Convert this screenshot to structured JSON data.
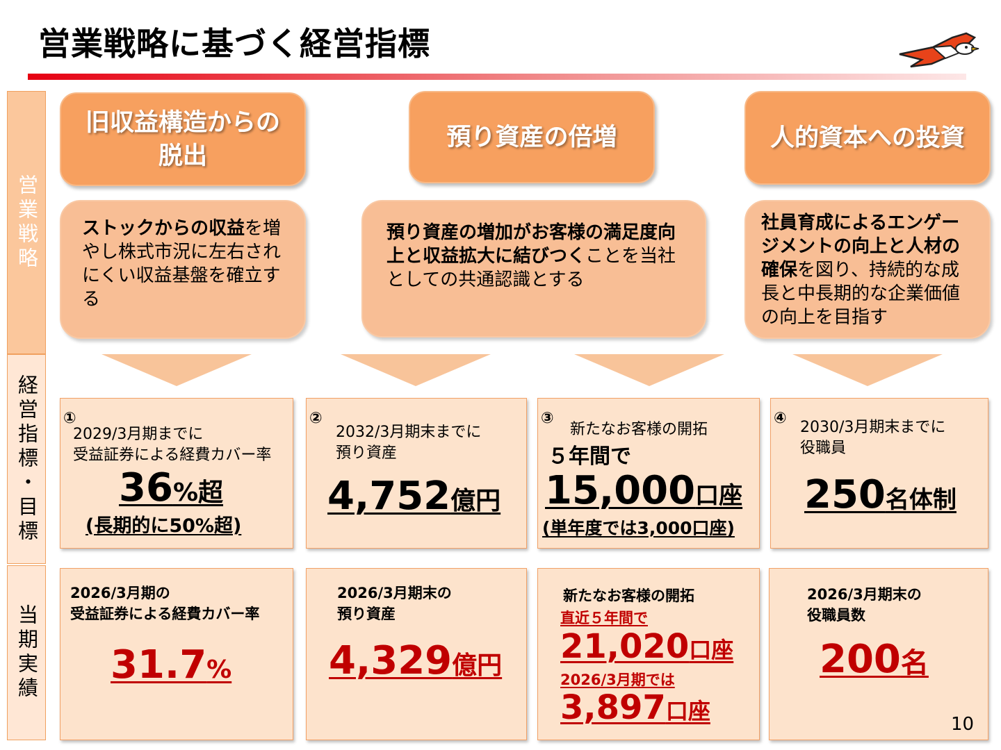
{
  "title": "営業戦略に基づく経営指標",
  "page_number": "10",
  "icons": {
    "logo": "bird-logo-icon"
  },
  "colors": {
    "accent_red": "#e60012",
    "orange": "#f7a05f",
    "result_red": "#c00000"
  },
  "side_labels": {
    "strategy": "営業戦略",
    "kpi": "経営指標・目標",
    "results": "当期実績"
  },
  "strategies": [
    {
      "heading_line1": "旧収益構造からの",
      "heading_line2": "脱出",
      "desc_bold": "ストックからの収益",
      "desc_text": "を増やし株式市況に左右されにくい収益基盤を確立する"
    },
    {
      "heading_line1": "預り資産の倍増",
      "heading_line2": "",
      "desc_bold": "預り資産の増加がお客様の満足度向上と収益拡大に結びつく",
      "desc_text": "ことを当社としての共通認識とする"
    },
    {
      "heading_line1": "人的資本への投資",
      "heading_line2": "",
      "desc_bold": "社員育成によるエンゲージメントの向上と人材の確保",
      "desc_text": "を図り、持続的な成長と中長期的な企業価値の向上を目指す"
    }
  ],
  "kpis": [
    {
      "number": "①",
      "label_line1": "2029/3月期までに",
      "label_line2": "受益証券による経費カバー率",
      "value": "36",
      "unit": "%超",
      "note": "(長期的に50%超)"
    },
    {
      "number": "②",
      "label_line1": "2032/3月期末までに",
      "label_line2": "預り資産",
      "value": "4,752",
      "unit": "億円"
    },
    {
      "number": "③",
      "label_line1": "新たなお客様の開拓",
      "sub": "５年間で",
      "value": "15,000",
      "unit": "口座",
      "note": "(単年度では3,000口座)"
    },
    {
      "number": "④",
      "label_line1": "2030/3月期末までに",
      "label_line2": "役職員",
      "value": "250",
      "unit": "名体制"
    }
  ],
  "results": [
    {
      "label_line1": "2026/3月期の",
      "label_line2": "受益証券による経費カバー率",
      "value": "31.7",
      "unit": "%"
    },
    {
      "label_line1": "2026/3月期末の",
      "label_line2": "預り資産",
      "value": "4,329",
      "unit": "億円"
    },
    {
      "label_line1": "新たなお客様の開拓",
      "sub1": "直近５年間で",
      "value1": "21,020",
      "unit1": "口座",
      "sub2": "2026/3月期では",
      "value2": "3,897",
      "unit2": "口座"
    },
    {
      "label_line1": "2026/3月期末の",
      "label_line2": "役職員数",
      "value": "200",
      "unit": "名"
    }
  ]
}
